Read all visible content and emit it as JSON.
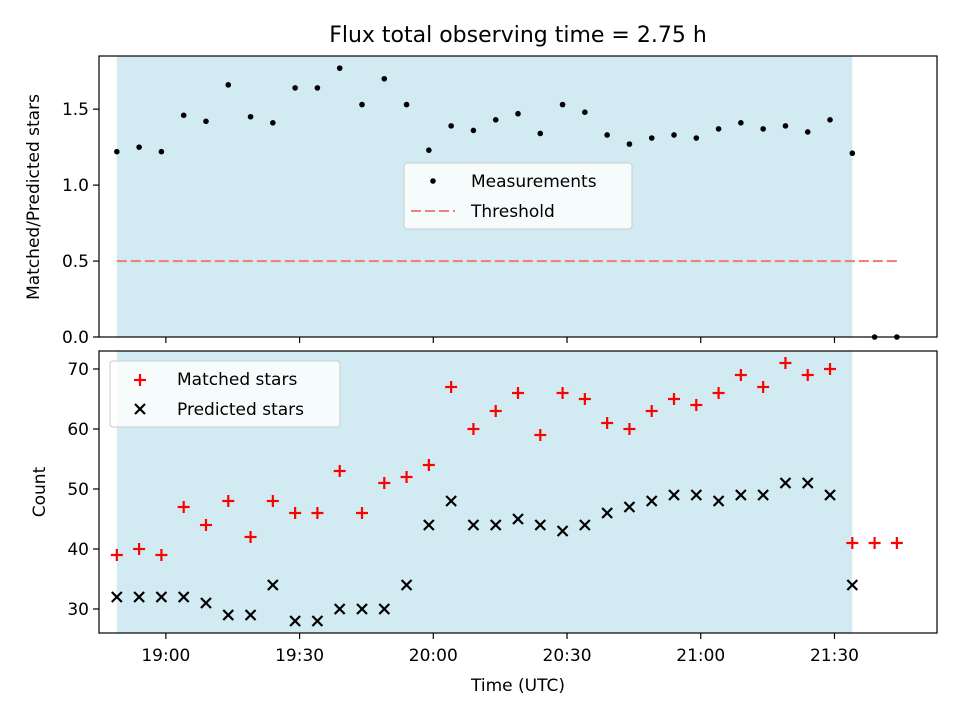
{
  "title": "Flux total observing time = 2.75 h",
  "colors": {
    "band": "#add8e6",
    "measurements": "#000000",
    "threshold": "#f08080",
    "matched": "#ff0000",
    "predicted": "#000000"
  },
  "chart_data": [
    {
      "type": "scatter",
      "ylabel": "Matched/Predicted stars",
      "ylim": [
        0,
        1.85
      ],
      "yticks": [
        0.0,
        0.5,
        1.0,
        1.5
      ],
      "ytick_labels": [
        "0.0",
        "0.5",
        "1.0",
        "1.5"
      ],
      "xlim": [
        "18:45",
        "21:53"
      ],
      "observing_window": [
        "18:49",
        "21:34"
      ],
      "legend": {
        "placement": "center",
        "entries": [
          "Measurements",
          "Threshold"
        ]
      },
      "series": [
        {
          "name": "Measurements",
          "marker": "dot",
          "x": [
            "18:49",
            "18:54",
            "18:59",
            "19:04",
            "19:09",
            "19:14",
            "19:19",
            "19:24",
            "19:29",
            "19:34",
            "19:39",
            "19:44",
            "19:49",
            "19:54",
            "19:59",
            "20:04",
            "20:09",
            "20:14",
            "20:19",
            "20:24",
            "20:29",
            "20:34",
            "20:39",
            "20:44",
            "20:49",
            "20:54",
            "20:59",
            "21:04",
            "21:09",
            "21:14",
            "21:19",
            "21:24",
            "21:29",
            "21:34",
            "21:39",
            "21:44"
          ],
          "y": [
            1.22,
            1.25,
            1.22,
            1.46,
            1.42,
            1.66,
            1.45,
            1.41,
            1.64,
            1.64,
            1.77,
            1.53,
            1.7,
            1.53,
            1.23,
            1.39,
            1.36,
            1.43,
            1.47,
            1.34,
            1.53,
            1.48,
            1.33,
            1.27,
            1.31,
            1.33,
            1.31,
            1.37,
            1.41,
            1.37,
            1.39,
            1.35,
            1.43,
            1.21,
            0.0,
            0.0
          ]
        },
        {
          "name": "Threshold",
          "style": "dashed",
          "x": [
            "18:49",
            "21:44"
          ],
          "y": [
            0.5,
            0.5
          ]
        }
      ]
    },
    {
      "type": "scatter",
      "xlabel": "Time (UTC)",
      "ylabel": "Count",
      "ylim": [
        26,
        73
      ],
      "yticks": [
        30,
        40,
        50,
        60,
        70
      ],
      "xlim": [
        "18:45",
        "21:53"
      ],
      "xticks": [
        "19:00",
        "19:30",
        "20:00",
        "20:30",
        "21:00",
        "21:30"
      ],
      "observing_window": [
        "18:49",
        "21:34"
      ],
      "legend": {
        "placement": "top-left",
        "entries": [
          "Matched stars",
          "Predicted stars"
        ]
      },
      "series": [
        {
          "name": "Matched stars",
          "marker": "plus",
          "x": [
            "18:49",
            "18:54",
            "18:59",
            "19:04",
            "19:09",
            "19:14",
            "19:19",
            "19:24",
            "19:29",
            "19:34",
            "19:39",
            "19:44",
            "19:49",
            "19:54",
            "19:59",
            "20:04",
            "20:09",
            "20:14",
            "20:19",
            "20:24",
            "20:29",
            "20:34",
            "20:39",
            "20:44",
            "20:49",
            "20:54",
            "20:59",
            "21:04",
            "21:09",
            "21:14",
            "21:19",
            "21:24",
            "21:29",
            "21:34",
            "21:39",
            "21:44"
          ],
          "y": [
            39,
            40,
            39,
            47,
            44,
            48,
            42,
            48,
            46,
            46,
            53,
            46,
            51,
            52,
            54,
            67,
            60,
            63,
            66,
            59,
            66,
            65,
            61,
            60,
            63,
            65,
            64,
            66,
            69,
            67,
            71,
            69,
            70,
            41,
            41,
            41
          ]
        },
        {
          "name": "Predicted stars",
          "marker": "x",
          "x": [
            "18:49",
            "18:54",
            "18:59",
            "19:04",
            "19:09",
            "19:14",
            "19:19",
            "19:24",
            "19:29",
            "19:34",
            "19:39",
            "19:44",
            "19:49",
            "19:54",
            "19:59",
            "20:04",
            "20:09",
            "20:14",
            "20:19",
            "20:24",
            "20:29",
            "20:34",
            "20:39",
            "20:44",
            "20:49",
            "20:54",
            "20:59",
            "21:04",
            "21:09",
            "21:14",
            "21:19",
            "21:24",
            "21:29",
            "21:34"
          ],
          "y": [
            32,
            32,
            32,
            32,
            31,
            29,
            29,
            34,
            28,
            28,
            30,
            30,
            30,
            34,
            44,
            48,
            44,
            44,
            45,
            44,
            43,
            44,
            46,
            47,
            48,
            49,
            49,
            48,
            49,
            49,
            51,
            51,
            49,
            34
          ]
        }
      ]
    }
  ]
}
